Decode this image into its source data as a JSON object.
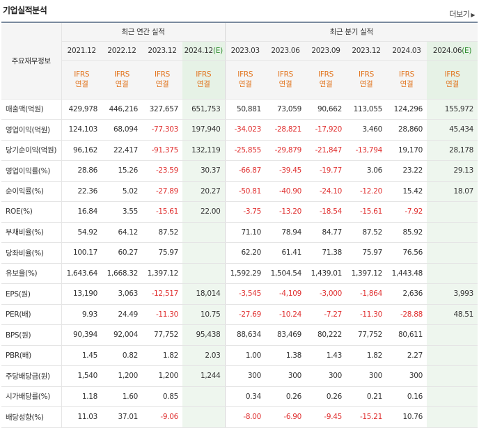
{
  "title": "기업실적분석",
  "more_label": "더보기",
  "corner_label": "주요재무정보",
  "groups": {
    "annual": "최근 연간 실적",
    "quarter": "최근 분기 실적"
  },
  "periods": [
    "2021.12",
    "2022.12",
    "2023.12",
    "2024.12",
    "2023.03",
    "2023.06",
    "2023.09",
    "2023.12",
    "2024.03",
    "2024.06"
  ],
  "estimate_mark": "(E)",
  "standard_line1": "IFRS",
  "standard_line2": "연결",
  "rows": [
    {
      "label": "매출액(억원)",
      "values": [
        "429,978",
        "446,216",
        "327,657",
        "651,753",
        "50,881",
        "73,059",
        "90,662",
        "113,055",
        "124,296",
        "155,972"
      ]
    },
    {
      "label": "영업이익(억원)",
      "values": [
        "124,103",
        "68,094",
        "-77,303",
        "197,940",
        "-34,023",
        "-28,821",
        "-17,920",
        "3,460",
        "28,860",
        "45,434"
      ]
    },
    {
      "label": "당기순이익(억원)",
      "values": [
        "96,162",
        "22,417",
        "-91,375",
        "132,119",
        "-25,855",
        "-29,879",
        "-21,847",
        "-13,794",
        "19,170",
        "28,178"
      ]
    },
    {
      "label": "영업이익률(%)",
      "values": [
        "28.86",
        "15.26",
        "-23.59",
        "30.37",
        "-66.87",
        "-39.45",
        "-19.77",
        "3.06",
        "23.22",
        "29.13"
      ]
    },
    {
      "label": "순이익률(%)",
      "values": [
        "22.36",
        "5.02",
        "-27.89",
        "20.27",
        "-50.81",
        "-40.90",
        "-24.10",
        "-12.20",
        "15.42",
        "18.07"
      ]
    },
    {
      "label": "ROE(%)",
      "values": [
        "16.84",
        "3.55",
        "-15.61",
        "22.00",
        "-3.75",
        "-13.20",
        "-18.54",
        "-15.61",
        "-7.92",
        ""
      ]
    },
    {
      "label": "부채비율(%)",
      "values": [
        "54.92",
        "64.12",
        "87.52",
        "",
        "71.10",
        "78.94",
        "84.77",
        "87.52",
        "85.92",
        ""
      ]
    },
    {
      "label": "당좌비율(%)",
      "values": [
        "100.17",
        "60.27",
        "75.97",
        "",
        "62.20",
        "61.41",
        "71.38",
        "75.97",
        "76.56",
        ""
      ]
    },
    {
      "label": "유보율(%)",
      "values": [
        "1,643.64",
        "1,668.32",
        "1,397.12",
        "",
        "1,592.29",
        "1,504.54",
        "1,439.01",
        "1,397.12",
        "1,443.48",
        ""
      ]
    },
    {
      "label": "EPS(원)",
      "values": [
        "13,190",
        "3,063",
        "-12,517",
        "18,014",
        "-3,545",
        "-4,109",
        "-3,000",
        "-1,864",
        "2,636",
        "3,993"
      ]
    },
    {
      "label": "PER(배)",
      "values": [
        "9.93",
        "24.49",
        "-11.30",
        "10.75",
        "-27.69",
        "-10.24",
        "-7.27",
        "-11.30",
        "-28.88",
        "48.51"
      ]
    },
    {
      "label": "BPS(원)",
      "values": [
        "90,394",
        "92,004",
        "77,752",
        "95,438",
        "88,634",
        "83,469",
        "80,222",
        "77,752",
        "80,611",
        ""
      ]
    },
    {
      "label": "PBR(배)",
      "values": [
        "1.45",
        "0.82",
        "1.82",
        "2.03",
        "1.00",
        "1.38",
        "1.43",
        "1.82",
        "2.27",
        ""
      ]
    },
    {
      "label": "주당배당금(원)",
      "values": [
        "1,540",
        "1,200",
        "1,200",
        "1,244",
        "300",
        "300",
        "300",
        "300",
        "300",
        ""
      ]
    },
    {
      "label": "시가배당률(%)",
      "values": [
        "1.18",
        "1.60",
        "0.85",
        "",
        "0.34",
        "0.26",
        "0.26",
        "0.21",
        "0.16",
        ""
      ]
    },
    {
      "label": "배당성향(%)",
      "values": [
        "11.03",
        "37.01",
        "-9.06",
        "",
        "-8.00",
        "-6.90",
        "-9.45",
        "-15.21",
        "10.76",
        ""
      ]
    }
  ]
}
